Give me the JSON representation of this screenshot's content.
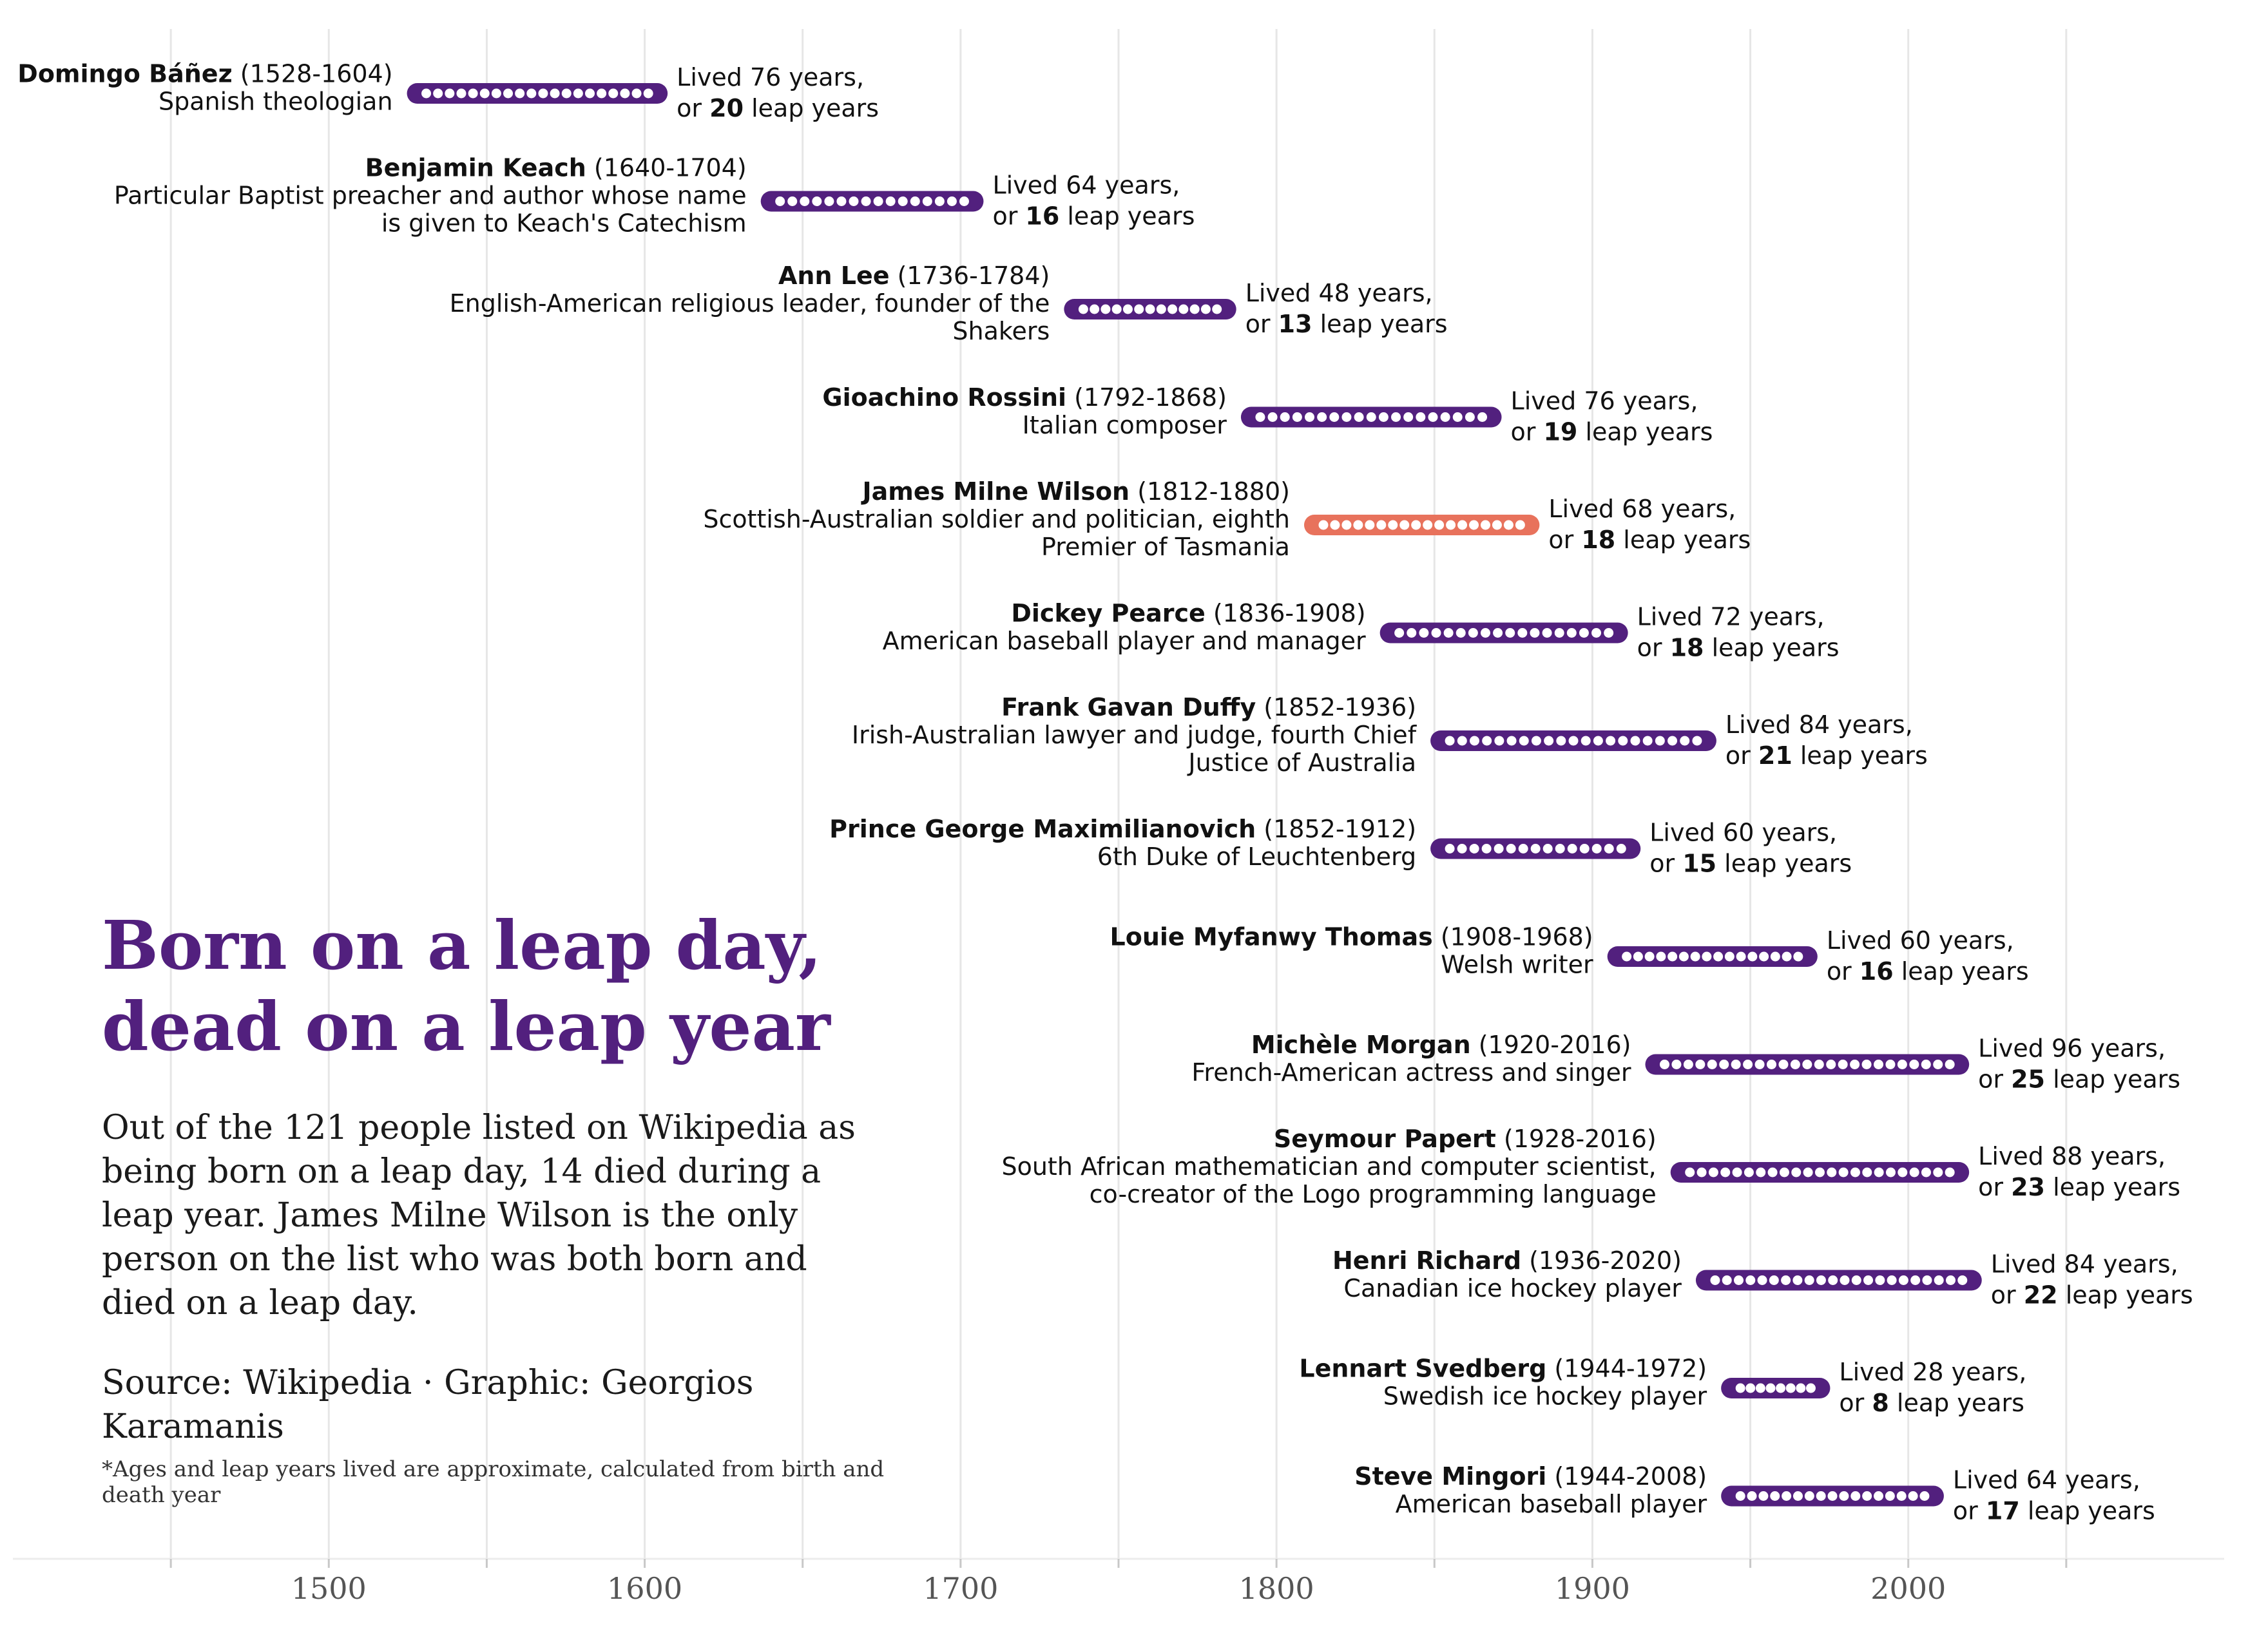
{
  "chart_data": {
    "type": "timeline",
    "title": "Born on a leap day,\ndead on a leap year",
    "subtitle": "Out of the 121 people listed on Wikipedia as being born on a leap day, 14 died during a leap year. James Milne Wilson is the only person on the list who was both born and died on a leap day.",
    "source": "Source: Wikipedia · Graphic: Georgios Karamanis",
    "note": "*Ages and leap years lived are approximate, calculated from birth and death year",
    "xlim": [
      1400,
      2100
    ],
    "x_ticks": [
      1500,
      1600,
      1700,
      1800,
      1900,
      2000
    ],
    "colors": {
      "default": "#52207e",
      "highlight": "#e8725c",
      "grid": "#e6e6e6"
    },
    "lived_prefix": "Lived ",
    "years_suffix": " years,",
    "or_prefix": "or ",
    "leap_suffix": " leap years",
    "people": [
      {
        "name": "Domingo Báñez",
        "birth": 1528,
        "death": 1604,
        "years_label": "(1528-1604)",
        "desc": [
          "Spanish theologian"
        ],
        "lived": 76,
        "leap_years": 20,
        "highlight": false
      },
      {
        "name": "Benjamin Keach",
        "birth": 1640,
        "death": 1704,
        "years_label": "(1640-1704)",
        "desc": [
          "Particular Baptist preacher and author whose name",
          "is given to Keach's Catechism"
        ],
        "lived": 64,
        "leap_years": 16,
        "highlight": false
      },
      {
        "name": "Ann Lee",
        "birth": 1736,
        "death": 1784,
        "years_label": "(1736-1784)",
        "desc": [
          "English-American religious leader, founder of the",
          "Shakers"
        ],
        "lived": 48,
        "leap_years": 13,
        "highlight": false
      },
      {
        "name": "Gioachino Rossini",
        "birth": 1792,
        "death": 1868,
        "years_label": "(1792-1868)",
        "desc": [
          "Italian composer"
        ],
        "lived": 76,
        "leap_years": 19,
        "highlight": false
      },
      {
        "name": "James Milne Wilson",
        "birth": 1812,
        "death": 1880,
        "years_label": "(1812-1880)",
        "desc": [
          "Scottish-Australian soldier and politician, eighth",
          "Premier of Tasmania"
        ],
        "lived": 68,
        "leap_years": 18,
        "highlight": true
      },
      {
        "name": "Dickey Pearce",
        "birth": 1836,
        "death": 1908,
        "years_label": "(1836-1908)",
        "desc": [
          "American baseball player and manager"
        ],
        "lived": 72,
        "leap_years": 18,
        "highlight": false
      },
      {
        "name": "Frank Gavan Duffy",
        "birth": 1852,
        "death": 1936,
        "years_label": "(1852-1936)",
        "desc": [
          "Irish-Australian lawyer and judge, fourth Chief",
          "Justice of Australia"
        ],
        "lived": 84,
        "leap_years": 21,
        "highlight": false
      },
      {
        "name": "Prince George Maximilianovich",
        "birth": 1852,
        "death": 1912,
        "years_label": "(1852-1912)",
        "desc": [
          "6th Duke of Leuchtenberg"
        ],
        "lived": 60,
        "leap_years": 15,
        "highlight": false
      },
      {
        "name": "Louie Myfanwy Thomas",
        "birth": 1908,
        "death": 1968,
        "years_label": "(1908-1968)",
        "desc": [
          "Welsh writer"
        ],
        "lived": 60,
        "leap_years": 16,
        "highlight": false
      },
      {
        "name": "Michèle Morgan",
        "birth": 1920,
        "death": 2016,
        "years_label": "(1920-2016)",
        "desc": [
          "French-American actress and singer"
        ],
        "lived": 96,
        "leap_years": 25,
        "highlight": false
      },
      {
        "name": "Seymour Papert",
        "birth": 1928,
        "death": 2016,
        "years_label": "(1928-2016)",
        "desc": [
          "South African mathematician and computer scientist,",
          "co-creator of the Logo programming language"
        ],
        "lived": 88,
        "leap_years": 23,
        "highlight": false
      },
      {
        "name": "Henri Richard",
        "birth": 1936,
        "death": 2020,
        "years_label": "(1936-2020)",
        "desc": [
          "Canadian ice hockey player"
        ],
        "lived": 84,
        "leap_years": 22,
        "highlight": false
      },
      {
        "name": "Lennart Svedberg",
        "birth": 1944,
        "death": 1972,
        "years_label": "(1944-1972)",
        "desc": [
          "Swedish ice hockey player"
        ],
        "lived": 28,
        "leap_years": 8,
        "highlight": false
      },
      {
        "name": "Steve Mingori",
        "birth": 1944,
        "death": 2008,
        "years_label": "(1944-2008)",
        "desc": [
          "American baseball player"
        ],
        "lived": 64,
        "leap_years": 17,
        "highlight": false
      }
    ]
  }
}
